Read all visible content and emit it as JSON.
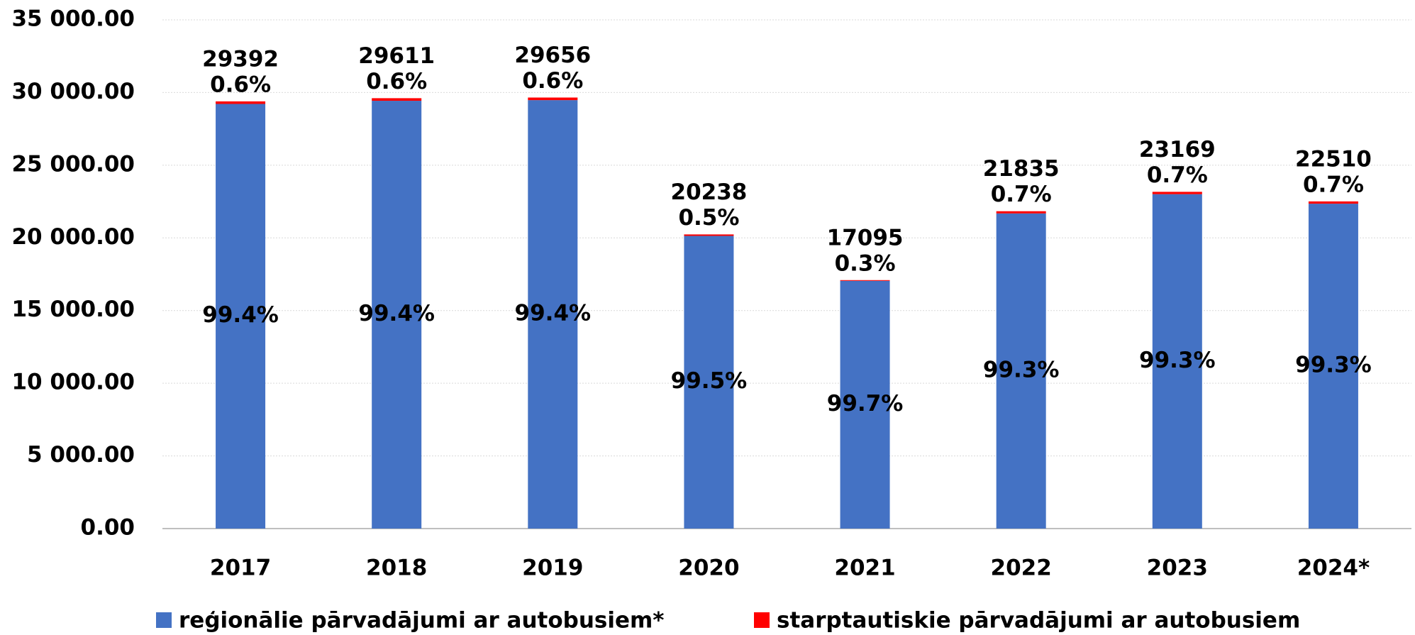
{
  "chart_data": {
    "type": "stacked_bar",
    "categories": [
      "2017",
      "2018",
      "2019",
      "2020",
      "2021",
      "2022",
      "2023",
      "2024*"
    ],
    "totals": [
      29392,
      29611,
      29656,
      20238,
      17095,
      21835,
      23169,
      22510
    ],
    "series": [
      {
        "name": "reģionālie pārvadājumi ar autobusiem*",
        "color": "#4472c4",
        "values": [
          29216,
          29433,
          29478,
          20137,
          17044,
          21682,
          23007,
          22352
        ],
        "share_labels": [
          "99.4%",
          "99.4%",
          "99.4%",
          "99.5%",
          "99.7%",
          "99.3%",
          "99.3%",
          "99.3%"
        ]
      },
      {
        "name": "starptautiskie pārvadājumi ar autobusiem",
        "color": "#ff0000",
        "values": [
          176,
          178,
          178,
          101,
          51,
          153,
          162,
          158
        ],
        "share_labels": [
          "0.6%",
          "0.6%",
          "0.6%",
          "0.5%",
          "0.3%",
          "0.7%",
          "0.7%",
          "0.7%"
        ]
      }
    ],
    "ylim": [
      0,
      35000
    ],
    "yticks": [
      {
        "value": 0,
        "label": "0.00"
      },
      {
        "value": 5000,
        "label": "5 000.00"
      },
      {
        "value": 10000,
        "label": "10 000.00"
      },
      {
        "value": 15000,
        "label": "15 000.00"
      },
      {
        "value": 20000,
        "label": "20 000.00"
      },
      {
        "value": 25000,
        "label": "25 000.00"
      },
      {
        "value": 30000,
        "label": "30 000.00"
      },
      {
        "value": 35000,
        "label": "35 000.00"
      }
    ],
    "grid": true,
    "legend": "bottom"
  }
}
